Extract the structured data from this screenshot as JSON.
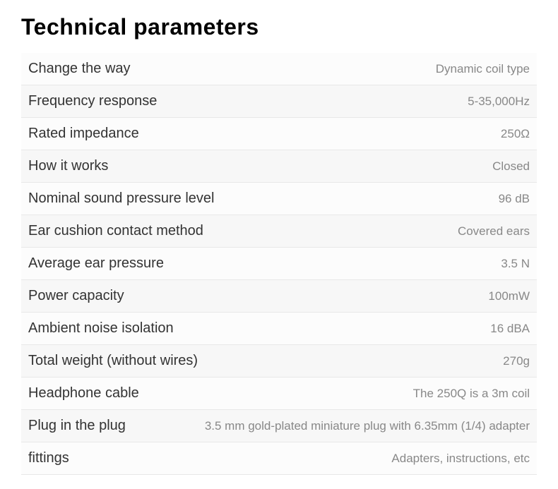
{
  "title": "Technical parameters",
  "specs": [
    {
      "label": "Change the way",
      "value": "Dynamic coil type"
    },
    {
      "label": "Frequency response",
      "value": "5-35,000Hz"
    },
    {
      "label": "Rated impedance",
      "value": "250Ω"
    },
    {
      "label": "How it works",
      "value": "Closed"
    },
    {
      "label": "Nominal sound pressure level",
      "value": "96 dB"
    },
    {
      "label": "Ear cushion contact method",
      "value": "Covered ears"
    },
    {
      "label": "Average ear pressure",
      "value": "3.5 N"
    },
    {
      "label": "Power capacity",
      "value": "100mW"
    },
    {
      "label": "Ambient noise isolation",
      "value": "16 dBA"
    },
    {
      "label": "Total weight (without wires)",
      "value": "270g"
    },
    {
      "label": "Headphone cable",
      "value": "The 250Q is a 3m coil"
    },
    {
      "label": "Plug in the plug",
      "value": "3.5 mm gold-plated miniature plug with 6.35mm (1/4) adapter"
    },
    {
      "label": "fittings",
      "value": "Adapters, instructions, etc"
    }
  ],
  "styling": {
    "title_font": "Impact",
    "title_fontsize": 32,
    "title_color": "#000000",
    "label_fontsize": 20,
    "label_color": "#333333",
    "value_fontsize": 17,
    "value_color": "#888888",
    "row_bg_odd": "#fcfcfc",
    "row_bg_even": "#f7f7f7",
    "border_color": "#e8e8e8",
    "background_color": "#ffffff"
  }
}
